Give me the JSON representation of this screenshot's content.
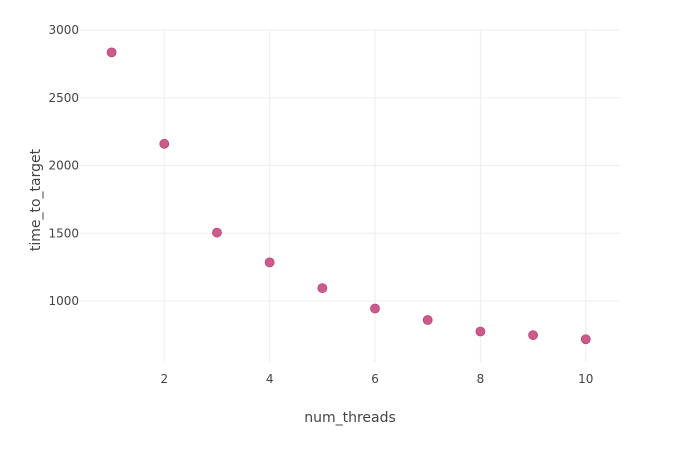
{
  "chart_data": {
    "type": "scatter",
    "title": "",
    "xlabel": "num_threads",
    "ylabel": "time_to_target",
    "x": [
      1,
      2,
      3,
      4,
      5,
      6,
      7,
      8,
      9,
      10
    ],
    "y": [
      2835,
      2160,
      1505,
      1285,
      1095,
      945,
      860,
      775,
      748,
      718
    ],
    "xlim": [
      0.4,
      10.65
    ],
    "ylim": [
      550,
      3000
    ],
    "xticks": [
      2,
      4,
      6,
      8,
      10
    ],
    "yticks": [
      1000,
      1500,
      2000,
      2500,
      3000
    ],
    "grid": true,
    "marker_color": "#cc5a8a",
    "marker_stroke": "#b8457a"
  }
}
